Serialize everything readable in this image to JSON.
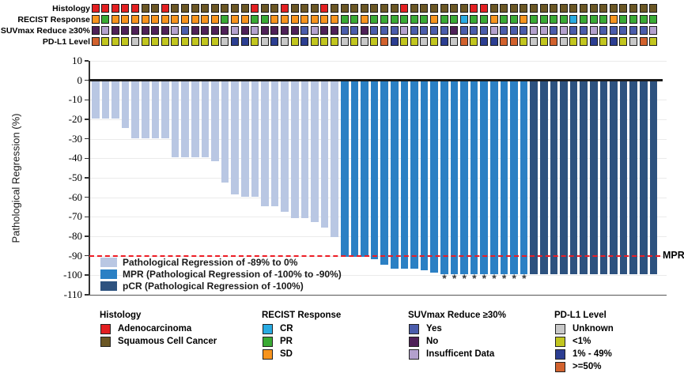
{
  "tracks": {
    "labels": [
      "Histology",
      "RECIST Response",
      "SUVmax Reduce ≥30%",
      "PD-L1 Level"
    ],
    "histology": [
      "A",
      "A",
      "A",
      "A",
      "A",
      "S",
      "S",
      "A",
      "S",
      "S",
      "S",
      "S",
      "S",
      "S",
      "S",
      "S",
      "A",
      "S",
      "S",
      "A",
      "S",
      "S",
      "S",
      "A",
      "S",
      "S",
      "S",
      "S",
      "S",
      "S",
      "S",
      "A",
      "S",
      "S",
      "S",
      "S",
      "S",
      "S",
      "A",
      "A",
      "S",
      "S",
      "S",
      "S",
      "S",
      "S",
      "S",
      "S",
      "S",
      "S",
      "S",
      "S",
      "S",
      "S",
      "S",
      "S",
      "S"
    ],
    "recist": [
      "SD",
      "PR",
      "SD",
      "SD",
      "SD",
      "SD",
      "SD",
      "SD",
      "SD",
      "SD",
      "SD",
      "SD",
      "SD",
      "PR",
      "SD",
      "SD",
      "PR",
      "PR",
      "SD",
      "SD",
      "SD",
      "SD",
      "SD",
      "SD",
      "SD",
      "PR",
      "PR",
      "SD",
      "PR",
      "PR",
      "PR",
      "PR",
      "PR",
      "PR",
      "SD",
      "PR",
      "PR",
      "CR",
      "PR",
      "PR",
      "SD",
      "PR",
      "PR",
      "SD",
      "PR",
      "PR",
      "PR",
      "PR",
      "CR",
      "PR",
      "PR",
      "PR",
      "SD",
      "PR",
      "PR",
      "PR",
      "PR"
    ],
    "suvmax": [
      "N",
      "I",
      "N",
      "N",
      "N",
      "N",
      "N",
      "N",
      "I",
      "Y",
      "N",
      "N",
      "N",
      "N",
      "I",
      "N",
      "I",
      "N",
      "N",
      "N",
      "N",
      "Y",
      "I",
      "N",
      "N",
      "Y",
      "Y",
      "N",
      "Y",
      "Y",
      "Y",
      "I",
      "Y",
      "Y",
      "Y",
      "Y",
      "N",
      "Y",
      "Y",
      "Y",
      "I",
      "Y",
      "Y",
      "Y",
      "I",
      "I",
      "Y",
      "I",
      "Y",
      "Y",
      "I",
      "Y",
      "Y",
      "Y",
      "Y",
      "Y",
      "I"
    ],
    "pdl1": [
      ">=50",
      "<1",
      "<1",
      "<1",
      "U",
      "<1",
      "<1",
      "<1",
      "<1",
      "<1",
      "<1",
      "<1",
      "<1",
      "U",
      "1-49",
      "1-49",
      "<1",
      "U",
      "1-49",
      "U",
      "<1",
      "1-49",
      "<1",
      "<1",
      "<1",
      "U",
      "<1",
      "U",
      "<1",
      ">=50",
      "1-49",
      "<1",
      "<1",
      "U",
      "<1",
      "1-49",
      "U",
      ">=50",
      "<1",
      "1-49",
      "1-49",
      ">=50",
      ">=50",
      "<1",
      "U",
      "<1",
      ">=50",
      "U",
      "<1",
      "<1",
      "1-49",
      "<1",
      "1-49",
      "<1",
      "U",
      ">=50",
      "<1"
    ],
    "track_colors": {
      "histology": {
        "A": "#e31f21",
        "S": "#6b5724"
      },
      "recist": {
        "CR": "#29abe2",
        "PR": "#3aaa35",
        "SD": "#f7941e"
      },
      "suvmax": {
        "Y": "#4a5cab",
        "N": "#4f2058",
        "I": "#b3a0cd"
      },
      "pdl1": {
        "U": "#c8c8c8",
        "<1": "#c2c61f",
        "1-49": "#2c3e92",
        ">=50": "#d2622e"
      }
    }
  },
  "chart_data": {
    "type": "bar",
    "title": "",
    "ylabel": "Pathological Regression (%)",
    "ylim": [
      -110,
      10
    ],
    "yticks": [
      10,
      0,
      -10,
      -20,
      -30,
      -40,
      -50,
      -60,
      -70,
      -80,
      -90,
      -100,
      -110
    ],
    "grid": "horizontal",
    "values": [
      -20,
      -20,
      -20,
      -25,
      -30,
      -30,
      -30,
      -30,
      -40,
      -40,
      -40,
      -40,
      -42,
      -53,
      -59,
      -60,
      -60,
      -65,
      -65,
      -68,
      -71,
      -71,
      -73,
      -76,
      -81,
      -91,
      -91,
      -91,
      -92,
      -95,
      -97,
      -97,
      -97,
      -98,
      -99,
      -100,
      -100,
      -100,
      -100,
      -100,
      -100,
      -100,
      -100,
      -100,
      -100,
      -100,
      -100,
      -100,
      -100,
      -100,
      -100,
      -100,
      -100,
      -100,
      -100,
      -100,
      -100
    ],
    "groups": [
      "reg",
      "reg",
      "reg",
      "reg",
      "reg",
      "reg",
      "reg",
      "reg",
      "reg",
      "reg",
      "reg",
      "reg",
      "reg",
      "reg",
      "reg",
      "reg",
      "reg",
      "reg",
      "reg",
      "reg",
      "reg",
      "reg",
      "reg",
      "reg",
      "reg",
      "mpr",
      "mpr",
      "mpr",
      "mpr",
      "mpr",
      "mpr",
      "mpr",
      "mpr",
      "mpr",
      "mpr",
      "mpr",
      "mpr",
      "mpr",
      "mpr",
      "mpr",
      "mpr",
      "mpr",
      "mpr",
      "mpr",
      "pcr",
      "pcr",
      "pcr",
      "pcr",
      "pcr",
      "pcr",
      "pcr",
      "pcr",
      "pcr",
      "pcr",
      "pcr",
      "pcr",
      "pcr"
    ],
    "asterisk_bars": [
      36,
      37,
      38,
      39,
      40,
      41,
      42,
      43,
      44
    ],
    "asterisk_glyph": "*",
    "bar_colors": {
      "reg": "#b9c7e3",
      "mpr": "#2b80c4",
      "pcr": "#2d527f"
    },
    "reference_line": {
      "y": -90,
      "label": "MPR",
      "color": "#ed1c24",
      "style": "dashed"
    },
    "legend": [
      {
        "key": "reg",
        "label": "Pathological Regression of -89% to 0%"
      },
      {
        "key": "mpr",
        "label": "MPR (Pathological Regression of -100% to -90%)"
      },
      {
        "key": "pcr",
        "label": "pCR (Pathological Regression of -100%)"
      }
    ]
  },
  "bottom_legends": [
    {
      "title": "Histology",
      "items": [
        {
          "label": "Adenocarcinoma",
          "color": "#e31f21"
        },
        {
          "label": "Squamous Cell Cancer",
          "color": "#6b5724"
        }
      ]
    },
    {
      "title": "RECIST Response",
      "items": [
        {
          "label": "CR",
          "color": "#29abe2"
        },
        {
          "label": "PR",
          "color": "#3aaa35"
        },
        {
          "label": "SD",
          "color": "#f7941e"
        }
      ]
    },
    {
      "title": "SUVmax Reduce ≥30%",
      "items": [
        {
          "label": "Yes",
          "color": "#4a5cab"
        },
        {
          "label": "No",
          "color": "#4f2058"
        },
        {
          "label": "Insufficent Data",
          "color": "#b3a0cd"
        }
      ]
    },
    {
      "title": "PD-L1 Level",
      "items": [
        {
          "label": "Unknown",
          "color": "#c8c8c8"
        },
        {
          "label": "<1%",
          "color": "#c2c61f"
        },
        {
          "label": "1% - 49%",
          "color": "#2c3e92"
        },
        {
          "label": ">=50%",
          "color": "#d2622e"
        }
      ]
    }
  ]
}
